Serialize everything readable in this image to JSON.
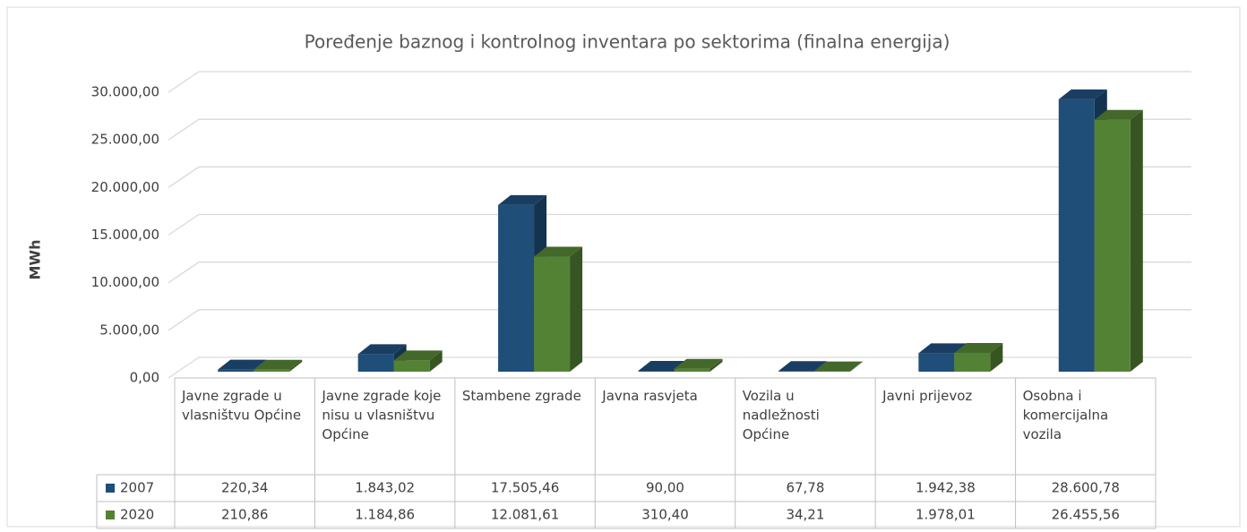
{
  "chart_data": {
    "type": "bar3d",
    "title": "Poređenje baznog i kontrolnog inventara po sektorima (finalna energija)",
    "y_label": "MWh",
    "categories": [
      "Javne zgrade u vlasništvu Općine",
      "Javne zgrade koje nisu u vlasništvu Općine",
      "Stambene zgrade",
      "Javna rasvjeta",
      "Vozila u nadležnosti Općine",
      "Javni prijevoz",
      "Osobna i komercijalna vozila"
    ],
    "series": [
      {
        "name": "2007",
        "color": "#1f4e79",
        "values": [
          220.34,
          1843.02,
          17505.46,
          90.0,
          67.78,
          1942.38,
          28600.78
        ],
        "value_labels": [
          "220,34",
          "1.843,02",
          "17.505,46",
          "90,00",
          "67,78",
          "1.942,38",
          "28.600,78"
        ]
      },
      {
        "name": "2020",
        "color": "#548235",
        "values": [
          210.86,
          1184.86,
          12081.61,
          310.4,
          34.21,
          1978.01,
          26455.56
        ],
        "value_labels": [
          "210,86",
          "1.184,86",
          "12.081,61",
          "310,40",
          "34,21",
          "1.978,01",
          "26.455,56"
        ]
      }
    ],
    "ylim": [
      0,
      30000
    ],
    "yticks": [
      {
        "value": 0,
        "label": "0,00"
      },
      {
        "value": 5000,
        "label": "5.000,00"
      },
      {
        "value": 10000,
        "label": "10.000,00"
      },
      {
        "value": 15000,
        "label": "15.000,00"
      },
      {
        "value": 20000,
        "label": "20.000,00"
      },
      {
        "value": 25000,
        "label": "25.000,00"
      },
      {
        "value": 30000,
        "label": "30.000,00"
      }
    ],
    "grid": true
  }
}
